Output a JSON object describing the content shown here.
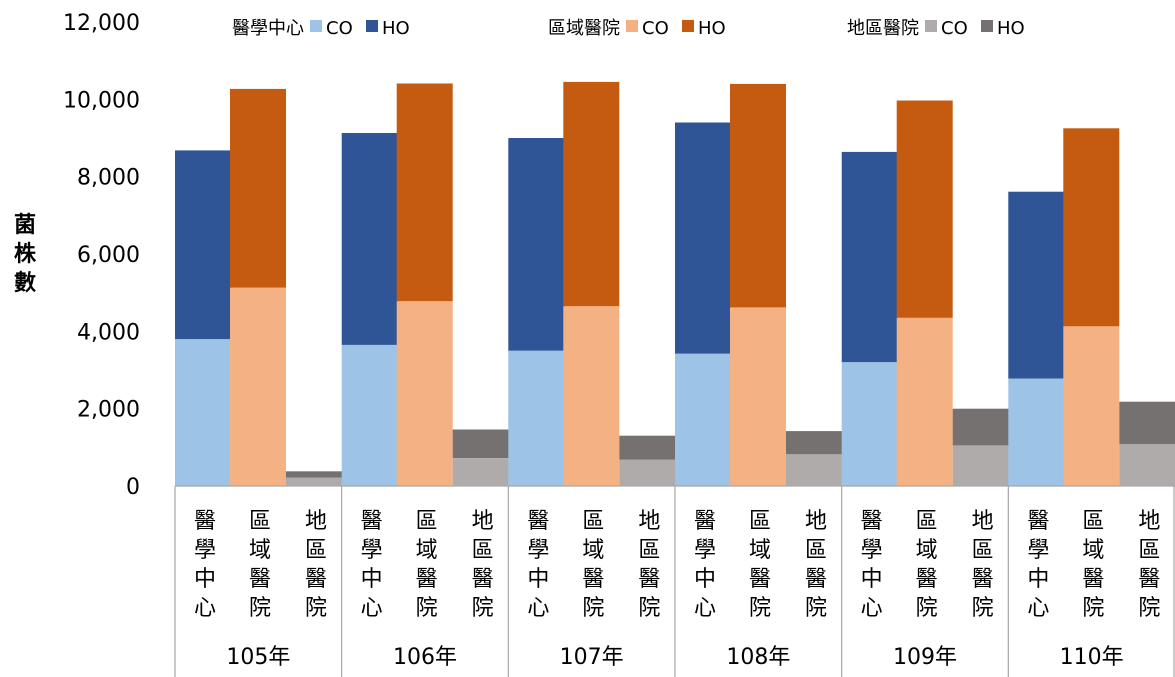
{
  "chart_data": {
    "type": "bar",
    "stacked": true,
    "ylabel": "菌株數",
    "ylim": [
      0,
      12000
    ],
    "yticks": [
      "0",
      "2,000",
      "4,000",
      "6,000",
      "8,000",
      "10,000",
      "12,000"
    ],
    "grid": false,
    "legend_position": "top",
    "years": [
      "105年",
      "106年",
      "107年",
      "108年",
      "109年",
      "110年"
    ],
    "hospital_types": [
      "醫學中心",
      "區域醫院",
      "地區醫院"
    ],
    "legend": [
      {
        "group": "醫學中心",
        "items": [
          {
            "label": "CO",
            "color": "#9DC3E6"
          },
          {
            "label": "HO",
            "color": "#2F5597"
          }
        ]
      },
      {
        "group": "區域醫院",
        "items": [
          {
            "label": "CO",
            "color": "#F4B183"
          },
          {
            "label": "HO",
            "color": "#C55A11"
          }
        ]
      },
      {
        "group": "地區醫院",
        "items": [
          {
            "label": "CO",
            "color": "#AFABAB"
          },
          {
            "label": "HO",
            "color": "#767171"
          }
        ]
      }
    ],
    "series": [
      {
        "name": "CO",
        "values": {
          "醫學中心": [
            3800,
            3650,
            3500,
            3420,
            3200,
            2780
          ],
          "區域醫院": [
            5130,
            4780,
            4650,
            4620,
            4350,
            4130
          ],
          "地區醫院": [
            220,
            720,
            680,
            820,
            1050,
            1080
          ]
        }
      },
      {
        "name": "HO",
        "values": {
          "醫學中心": [
            4880,
            5480,
            5500,
            5980,
            5440,
            4830
          ],
          "區域醫院": [
            5140,
            5630,
            5800,
            5780,
            5620,
            5120
          ],
          "地區醫院": [
            160,
            740,
            620,
            600,
            950,
            1100
          ]
        }
      }
    ]
  }
}
